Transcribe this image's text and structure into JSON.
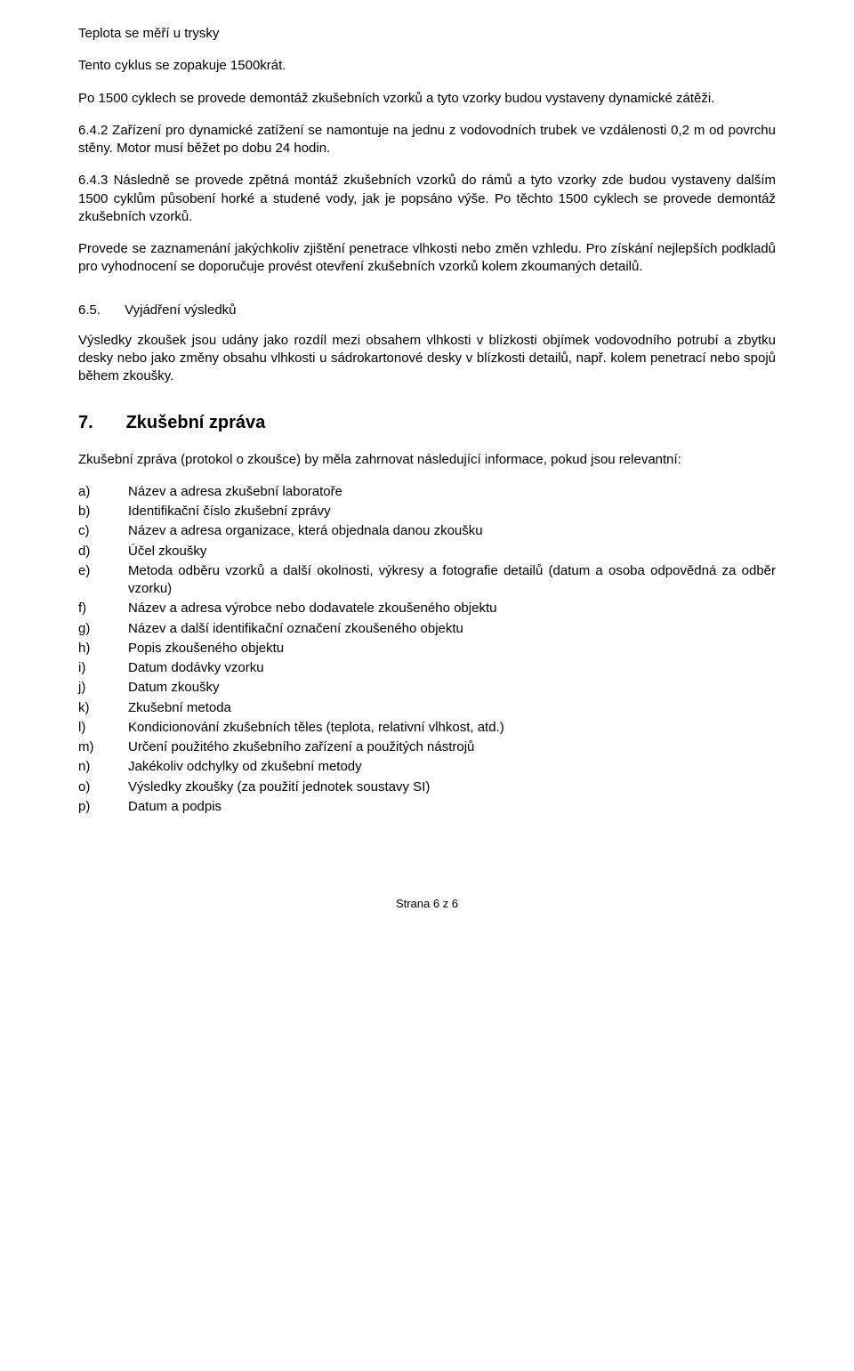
{
  "p1": "Teplota se měří u trysky",
  "p2": "Tento cyklus se zopakuje 1500krát.",
  "p3": "Po 1500 cyklech se provede demontáž zkušebních vzorků a tyto vzorky budou vystaveny dynamické zátěži.",
  "p4": "6.4.2   Zařízení pro dynamické zatížení se namontuje na jednu z vodovodních trubek ve vzdálenosti 0,2 m od povrchu stěny. Motor musí běžet po dobu 24 hodin.",
  "p5": "6.4.3   Následně se provede zpětná montáž zkušebních vzorků do rámů a tyto vzorky zde budou vystaveny dalším 1500 cyklům působení horké a studené vody, jak je popsáno výše. Po těchto 1500 cyklech se provede demontáž zkušebních vzorků.",
  "p6": "Provede se zaznamenání jakýchkoliv zjištění penetrace vlhkosti nebo změn vzhledu. Pro získání nejlepších podkladů pro vyhodnocení se doporučuje provést otevření zkušebních vzorků kolem zkoumaných detailů.",
  "h65_num": "6.5.",
  "h65_title": "Vyjádření výsledků",
  "p7": "Výsledky zkoušek jsou udány jako rozdíl mezi obsahem vlhkosti v blízkosti objímek vodovodního potrubí a zbytku desky nebo jako změny obsahu vlhkosti u sádrokartonové desky v blízkosti detailů, např. kolem penetrací nebo spojů během zkoušky.",
  "h7_num": "7.",
  "h7_title": "Zkušební zpráva",
  "p8": "Zkušební zpráva (protokol o zkoušce) by měla zahrnovat následující informace, pokud jsou relevantní:",
  "list": [
    {
      "m": "a)",
      "t": "Název a adresa zkušební laboratoře"
    },
    {
      "m": "b)",
      "t": "Identifikační číslo zkušební zprávy"
    },
    {
      "m": "c)",
      "t": "Název a adresa organizace, která objednala danou zkoušku"
    },
    {
      "m": "d)",
      "t": "Účel zkoušky"
    },
    {
      "m": "e)",
      "t": "Metoda odběru vzorků a další okolnosti, výkresy a fotografie detailů (datum a osoba odpovědná za odběr vzorku)"
    },
    {
      "m": "f)",
      "t": "Název a adresa výrobce nebo dodavatele zkoušeného objektu"
    },
    {
      "m": "g)",
      "t": "Název a další identifikační označení zkoušeného objektu"
    },
    {
      "m": "h)",
      "t": "Popis zkoušeného objektu"
    },
    {
      "m": "i)",
      "t": "Datum dodávky vzorku"
    },
    {
      "m": "j)",
      "t": "Datum zkoušky"
    },
    {
      "m": "k)",
      "t": "Zkušební metoda"
    },
    {
      "m": "l)",
      "t": "Kondicionování zkušebních těles (teplota, relativní vlhkost, atd.)"
    },
    {
      "m": "m)",
      "t": "Určení použitého zkušebního zařízení a použitých nástrojů"
    },
    {
      "m": "n)",
      "t": "Jakékoliv odchylky od zkušební metody"
    },
    {
      "m": "o)",
      "t": "Výsledky zkoušky (za použití jednotek soustavy SI)"
    },
    {
      "m": "p)",
      "t": "Datum a podpis"
    }
  ],
  "footer": "Strana 6 z 6"
}
